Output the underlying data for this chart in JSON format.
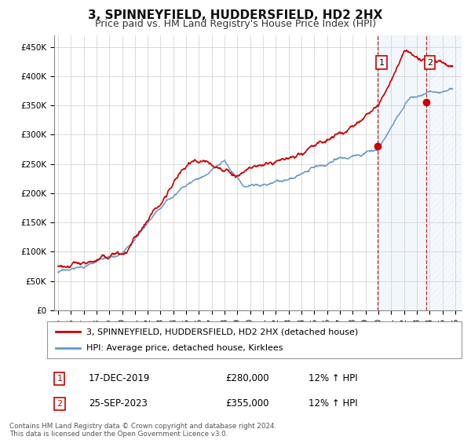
{
  "title": "3, SPINNEYFIELD, HUDDERSFIELD, HD2 2HX",
  "subtitle": "Price paid vs. HM Land Registry's House Price Index (HPI)",
  "ylabel_ticks": [
    "£0",
    "£50K",
    "£100K",
    "£150K",
    "£200K",
    "£250K",
    "£300K",
    "£350K",
    "£400K",
    "£450K"
  ],
  "ytick_values": [
    0,
    50000,
    100000,
    150000,
    200000,
    250000,
    300000,
    350000,
    400000,
    450000
  ],
  "ylim": [
    0,
    470000
  ],
  "xlim_start": 1994.7,
  "xlim_end": 2026.5,
  "red_line_color": "#cc0000",
  "blue_line_color": "#6699cc",
  "background_color": "#ffffff",
  "grid_color": "#cccccc",
  "plot_bg_color": "#ffffff",
  "highlight_bg_color": "#ddeeff",
  "sale1_x": 2019.96,
  "sale1_y": 280000,
  "sale2_x": 2023.72,
  "sale2_y": 355000,
  "sale1_label": "17-DEC-2019",
  "sale1_price": "£280,000",
  "sale1_hpi": "12% ↑ HPI",
  "sale2_label": "25-SEP-2023",
  "sale2_price": "£355,000",
  "sale2_hpi": "12% ↑ HPI",
  "legend1": "3, SPINNEYFIELD, HUDDERSFIELD, HD2 2HX (detached house)",
  "legend2": "HPI: Average price, detached house, Kirklees",
  "footer": "Contains HM Land Registry data © Crown copyright and database right 2024.\nThis data is licensed under the Open Government Licence v3.0.",
  "title_fontsize": 11,
  "subtitle_fontsize": 9,
  "tick_fontsize": 7.5,
  "legend_fontsize": 8
}
